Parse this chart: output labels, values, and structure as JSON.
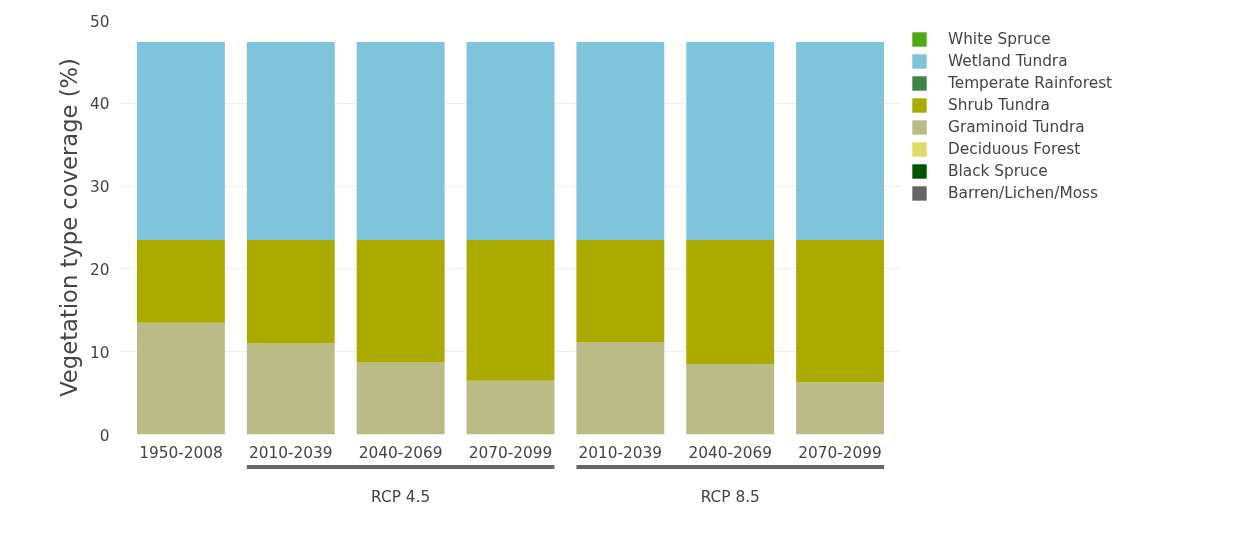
{
  "chart_data": {
    "type": "bar",
    "stacked": true,
    "ylabel": "Vegetation type coverage (%)",
    "categories": [
      "1950-2008",
      "2010-2039",
      "2040-2069",
      "2070-2099",
      "2010-2039",
      "2040-2069",
      "2070-2099"
    ],
    "series": [
      {
        "name": "Barren/Lichen/Moss",
        "color": "#666666",
        "values": [
          0,
          0,
          0,
          0,
          0,
          0,
          0
        ]
      },
      {
        "name": "Black Spruce",
        "color": "#005500",
        "values": [
          0,
          0,
          0,
          0,
          0,
          0,
          0
        ]
      },
      {
        "name": "Deciduous Forest",
        "color": "#dddd66",
        "values": [
          0,
          0,
          0,
          0,
          0,
          0,
          0
        ]
      },
      {
        "name": "Graminoid Tundra",
        "color": "#bbbb88",
        "values": [
          13.5,
          11.0,
          8.7,
          6.5,
          11.1,
          8.5,
          6.3
        ]
      },
      {
        "name": "Shrub Tundra",
        "color": "#aaaa00",
        "values": [
          10.0,
          12.5,
          14.8,
          17.0,
          12.4,
          15.0,
          17.2
        ]
      },
      {
        "name": "Temperate Rainforest",
        "color": "#3f8447",
        "values": [
          0,
          0,
          0,
          0,
          0,
          0,
          0
        ]
      },
      {
        "name": "Wetland Tundra",
        "color": "#7fc4da",
        "values": [
          23.9,
          23.9,
          23.9,
          23.9,
          23.9,
          23.9,
          23.9
        ]
      },
      {
        "name": "White Spruce",
        "color": "#4caa12",
        "values": [
          0,
          0,
          0,
          0,
          0,
          0,
          0
        ]
      }
    ],
    "ylim": [
      0,
      50
    ],
    "yticks": [
      0,
      10,
      20,
      30,
      40,
      50
    ],
    "grid": "y",
    "legend": "right",
    "annotations": [
      "RCP 4.5",
      "RCP 8.5"
    ]
  }
}
